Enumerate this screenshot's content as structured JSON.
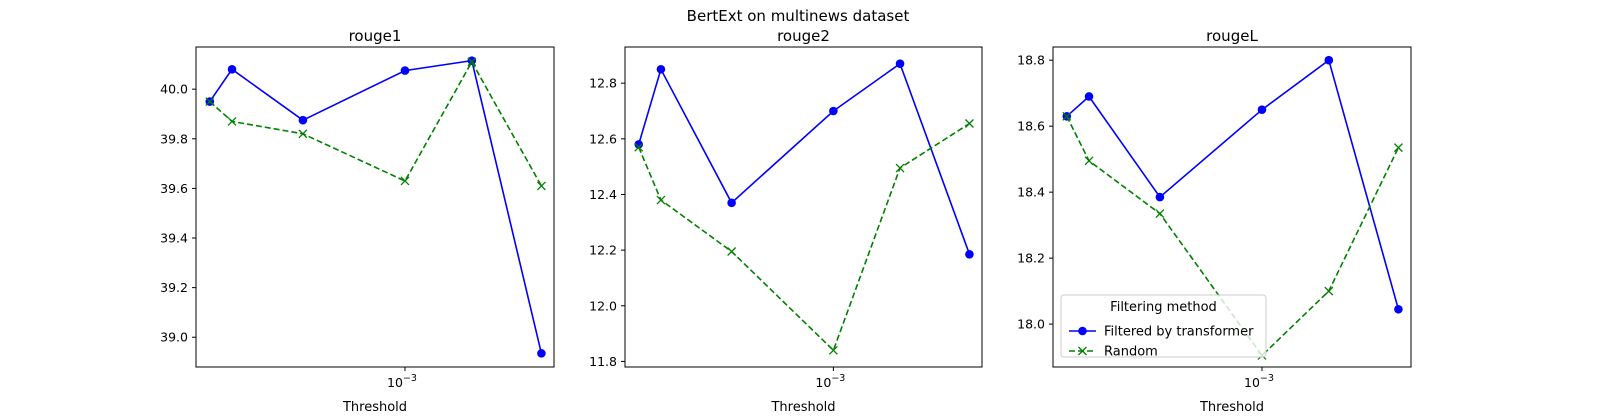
{
  "figure": {
    "suptitle": "BertExt on multinews dataset"
  },
  "legend": {
    "title": "Filtering method",
    "entries": [
      "Filtered by transformer",
      "Random"
    ],
    "location": "lower-left of rougeL panel"
  },
  "colors": {
    "filtered": "#0000ff",
    "random": "#008000"
  },
  "chart_data": [
    {
      "type": "line",
      "title": "rouge1",
      "xlabel": "Threshold",
      "ylabel": "",
      "xscale": "log",
      "x_tick_label": "10^-3",
      "ylim": [
        38.88,
        40.17
      ],
      "yticks": [
        39.0,
        39.2,
        39.4,
        39.6,
        39.8,
        40.0
      ],
      "grid": false,
      "series": [
        {
          "name": "Filtered by transformer",
          "marker": "circle",
          "linestyle": "solid",
          "x": [
            0.0001,
            0.00013,
            0.0003,
            0.001,
            0.0022,
            0.005
          ],
          "y": [
            39.95,
            40.08,
            39.875,
            40.075,
            40.115,
            38.935
          ]
        },
        {
          "name": "Random",
          "marker": "x",
          "linestyle": "dashed",
          "x": [
            0.0001,
            0.00013,
            0.0003,
            0.001,
            0.0022,
            0.005
          ],
          "y": [
            39.95,
            39.87,
            39.82,
            39.63,
            40.11,
            39.61
          ]
        }
      ]
    },
    {
      "type": "line",
      "title": "rouge2",
      "xlabel": "Threshold",
      "ylabel": "",
      "xscale": "log",
      "x_tick_label": "10^-3",
      "ylim": [
        11.78,
        12.93
      ],
      "yticks": [
        11.8,
        12.0,
        12.2,
        12.4,
        12.6,
        12.8
      ],
      "grid": false,
      "series": [
        {
          "name": "Filtered by transformer",
          "marker": "circle",
          "linestyle": "solid",
          "x": [
            0.0001,
            0.00013,
            0.0003,
            0.001,
            0.0022,
            0.005
          ],
          "y": [
            12.58,
            12.85,
            12.37,
            12.7,
            12.87,
            12.185
          ]
        },
        {
          "name": "Random",
          "marker": "x",
          "linestyle": "dashed",
          "x": [
            0.0001,
            0.00013,
            0.0003,
            0.001,
            0.0022,
            0.005
          ],
          "y": [
            12.57,
            12.38,
            12.195,
            11.84,
            12.495,
            12.655
          ]
        }
      ]
    },
    {
      "type": "line",
      "title": "rougeL",
      "xlabel": "Threshold",
      "ylabel": "",
      "xscale": "log",
      "x_tick_label": "10^-3",
      "ylim": [
        17.87,
        18.84
      ],
      "yticks": [
        18.0,
        18.2,
        18.4,
        18.6,
        18.8
      ],
      "grid": false,
      "series": [
        {
          "name": "Filtered by transformer",
          "marker": "circle",
          "linestyle": "solid",
          "x": [
            0.0001,
            0.00013,
            0.0003,
            0.001,
            0.0022,
            0.005
          ],
          "y": [
            18.63,
            18.69,
            18.385,
            18.65,
            18.8,
            18.045
          ]
        },
        {
          "name": "Random",
          "marker": "x",
          "linestyle": "dashed",
          "x": [
            0.0001,
            0.00013,
            0.0003,
            0.001,
            0.0022,
            0.005
          ],
          "y": [
            18.63,
            18.495,
            18.335,
            17.905,
            18.1,
            18.535
          ]
        }
      ]
    }
  ]
}
